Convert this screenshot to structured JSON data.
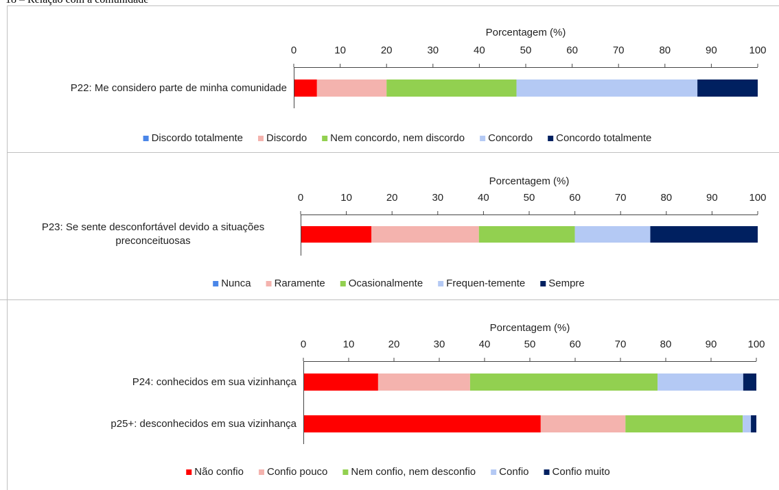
{
  "heading": "18 – Relação com a comunidade",
  "chart_data": [
    {
      "type": "stacked-bar",
      "orientation": "horizontal",
      "xlabel": "Porcentagem (%)",
      "categories": [
        "P22: Me considero parte de minha comunidade"
      ],
      "xlim": [
        0,
        100
      ],
      "xticks": [
        0,
        10,
        20,
        30,
        40,
        50,
        60,
        70,
        80,
        90,
        100
      ],
      "series": [
        {
          "name": "Discordo totalmente",
          "color": "#ff0000",
          "legend_color": "#4a86e8",
          "values": [
            5
          ]
        },
        {
          "name": "Discordo",
          "color": "#f4b3ae",
          "values": [
            15
          ]
        },
        {
          "name": "Nem concordo, nem discordo",
          "color": "#92d050",
          "values": [
            28
          ]
        },
        {
          "name": "Concordo",
          "color": "#b4c9f4",
          "values": [
            39
          ]
        },
        {
          "name": "Concordo totalmente",
          "color": "#002060",
          "values": [
            13
          ]
        }
      ],
      "legend": "bottom"
    },
    {
      "type": "stacked-bar",
      "orientation": "horizontal",
      "xlabel": "Porcentagem (%)",
      "categories": [
        "P23: Se sente desconfortável devido a situações preconceituosas"
      ],
      "xlim": [
        0,
        100
      ],
      "xticks": [
        0,
        10,
        20,
        30,
        40,
        50,
        60,
        70,
        80,
        90,
        100
      ],
      "series": [
        {
          "name": "Nunca",
          "color": "#ff0000",
          "legend_color": "#4a86e8",
          "values": [
            15.5
          ]
        },
        {
          "name": "Raramente",
          "color": "#f4b3ae",
          "values": [
            23.5
          ]
        },
        {
          "name": "Ocasionalmente",
          "color": "#92d050",
          "values": [
            21
          ]
        },
        {
          "name": "Frequen-temente",
          "color": "#b4c9f4",
          "values": [
            16.5
          ]
        },
        {
          "name": "Sempre",
          "color": "#002060",
          "values": [
            23.5
          ]
        }
      ],
      "legend": "bottom"
    },
    {
      "type": "stacked-bar",
      "orientation": "horizontal",
      "xlabel": "Porcentagem (%)",
      "categories": [
        "P24: conhecidos em sua vizinhança",
        "p25+: desconhecidos em sua vizinhança"
      ],
      "xlim": [
        0,
        100
      ],
      "xticks": [
        0,
        10,
        20,
        30,
        40,
        50,
        60,
        70,
        80,
        90,
        100
      ],
      "series": [
        {
          "name": "Não confio",
          "color": "#ff0000",
          "values": [
            16.5,
            52.4
          ]
        },
        {
          "name": "Confio pouco",
          "color": "#f4b3ae",
          "values": [
            20.3,
            18.7
          ]
        },
        {
          "name": "Nem confio, nem desconfio",
          "color": "#92d050",
          "values": [
            41.4,
            25.9
          ]
        },
        {
          "name": "Confio",
          "color": "#b4c9f4",
          "values": [
            18.9,
            1.8
          ]
        },
        {
          "name": "Confio muito",
          "color": "#002060",
          "values": [
            2.9,
            1.2
          ]
        }
      ],
      "legend": "bottom"
    }
  ]
}
